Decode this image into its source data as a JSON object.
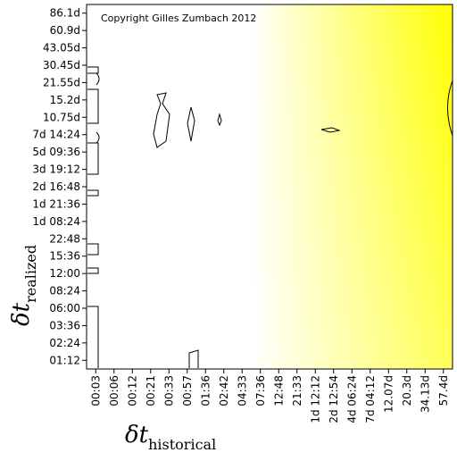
{
  "chart_data": {
    "type": "heatmap",
    "annotation": "Copyright Gilles Zumbach 2012",
    "xlabel": {
      "symbol": "δt",
      "sub": "historical"
    },
    "ylabel": {
      "symbol": "δt",
      "sub": "realized"
    },
    "x_categories": [
      "00:03",
      "00:06",
      "00:12",
      "00:21",
      "00:33",
      "00:57",
      "01:36",
      "02:42",
      "04:33",
      "07:36",
      "12:48",
      "21:33",
      "1d 12:12",
      "2d 12:54",
      "4d 06:24",
      "7d 04:12",
      "12.07d",
      "20.3d",
      "34.13d",
      "57.4d"
    ],
    "y_categories": [
      "86.1d",
      "60.9d",
      "43.05d",
      "30.45d",
      "21.55d",
      "15.2d",
      "10.75d",
      "7d 14:24",
      "5d 09:36",
      "3d 19:12",
      "2d 16:48",
      "1d 21:36",
      "1d 08:24",
      "22:48",
      "15:36",
      "12:00",
      "08:24",
      "06:00",
      "03:36",
      "02:24",
      "01:12"
    ],
    "colors": [
      "#ffffff",
      "#ffff00"
    ]
  }
}
